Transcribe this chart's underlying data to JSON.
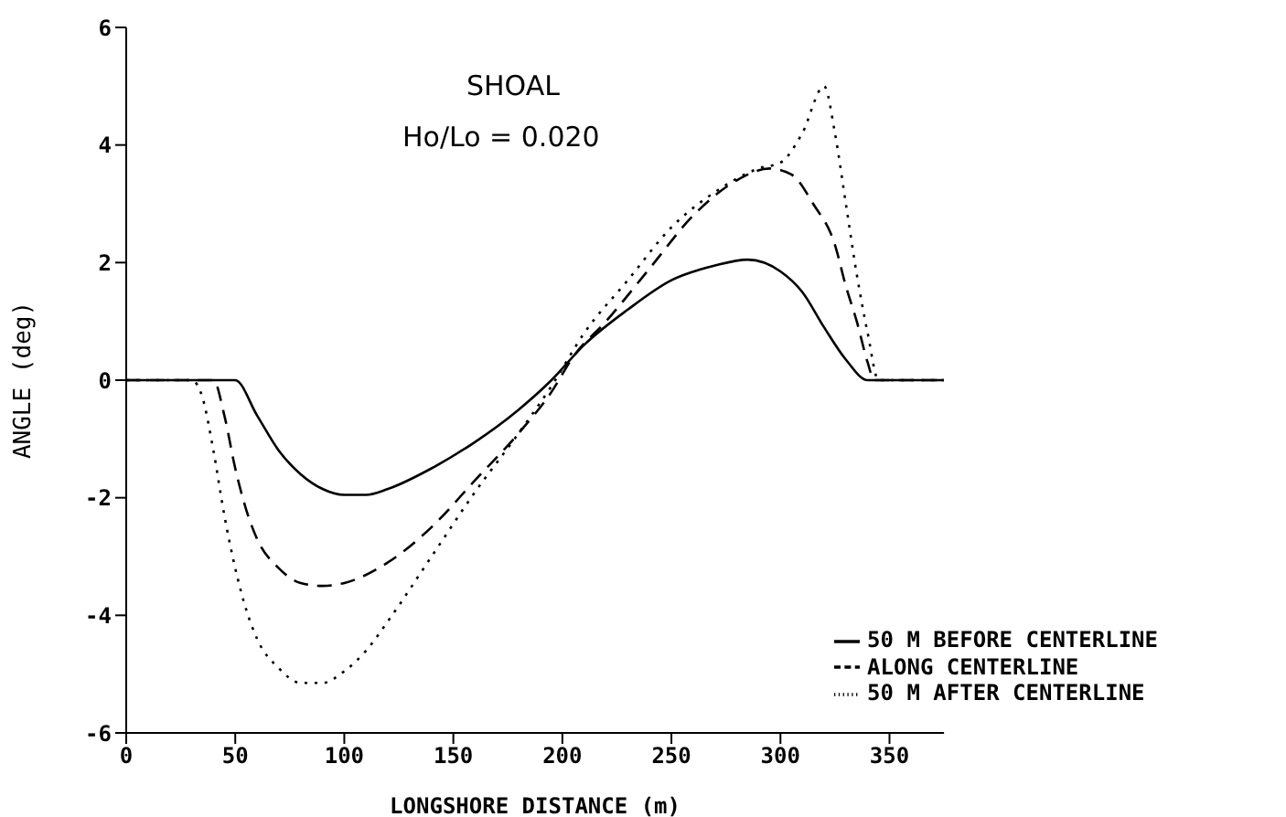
{
  "chart_data": {
    "type": "line",
    "title": "SHOAL",
    "subtitle": "Ho/Lo = 0.020",
    "xlabel": "LONGSHORE DISTANCE (m)",
    "ylabel": "ANGLE  (deg)",
    "xlim": [
      0,
      375
    ],
    "xticks": [
      0,
      50,
      100,
      150,
      200,
      250,
      300,
      350
    ],
    "ylim": [
      -6,
      6
    ],
    "yticks": [
      -6,
      -4,
      -2,
      0,
      2,
      4,
      6
    ],
    "legend": "bottom right",
    "grid": false,
    "marker": "none",
    "series": [
      {
        "name": "50 M BEFORE CENTERLINE",
        "color": "#000000",
        "line_style": "solid",
        "x": [
          0,
          50,
          60,
          70,
          80,
          90,
          100,
          110,
          120,
          140,
          160,
          180,
          195,
          210,
          230,
          250,
          270,
          285,
          300,
          310,
          320,
          330,
          340,
          375
        ],
        "values": [
          0,
          0,
          -0.6,
          -1.2,
          -1.6,
          -1.85,
          -1.95,
          -1.95,
          -1.85,
          -1.5,
          -1.05,
          -0.5,
          0,
          0.6,
          1.2,
          1.7,
          1.95,
          2.05,
          1.85,
          1.5,
          0.9,
          0.35,
          0,
          0
        ]
      },
      {
        "name": "ALONG CENTERLINE",
        "color": "#000000",
        "line_style": "dashed",
        "x": [
          0,
          40,
          45,
          50,
          55,
          60,
          70,
          80,
          90,
          100,
          120,
          140,
          160,
          180,
          195,
          205,
          220,
          240,
          260,
          280,
          295,
          305,
          315,
          325,
          330,
          335,
          340,
          343,
          375
        ],
        "values": [
          0,
          0,
          -0.6,
          -1.5,
          -2.2,
          -2.7,
          -3.2,
          -3.45,
          -3.5,
          -3.45,
          -3.1,
          -2.5,
          -1.7,
          -0.9,
          -0.2,
          0.4,
          1.0,
          1.9,
          2.8,
          3.4,
          3.6,
          3.5,
          3.0,
          2.3,
          1.6,
          1.0,
          0.3,
          0,
          0
        ]
      },
      {
        "name": "50 M AFTER CENTERLINE",
        "color": "#000000",
        "line_style": "dotted",
        "x": [
          0,
          30,
          35,
          40,
          45,
          50,
          55,
          60,
          70,
          80,
          90,
          100,
          110,
          120,
          140,
          160,
          180,
          195,
          210,
          230,
          250,
          270,
          290,
          300,
          310,
          320,
          325,
          330,
          335,
          340,
          345,
          375
        ],
        "values": [
          0,
          0,
          -0.3,
          -1.2,
          -2.3,
          -3.2,
          -3.9,
          -4.4,
          -4.9,
          -5.15,
          -5.15,
          -4.95,
          -4.6,
          -4.1,
          -3.0,
          -1.9,
          -0.9,
          -0.1,
          0.8,
          1.7,
          2.6,
          3.2,
          3.6,
          3.7,
          4.2,
          5.0,
          4.2,
          3.0,
          1.8,
          0.8,
          0,
          0
        ]
      }
    ]
  }
}
